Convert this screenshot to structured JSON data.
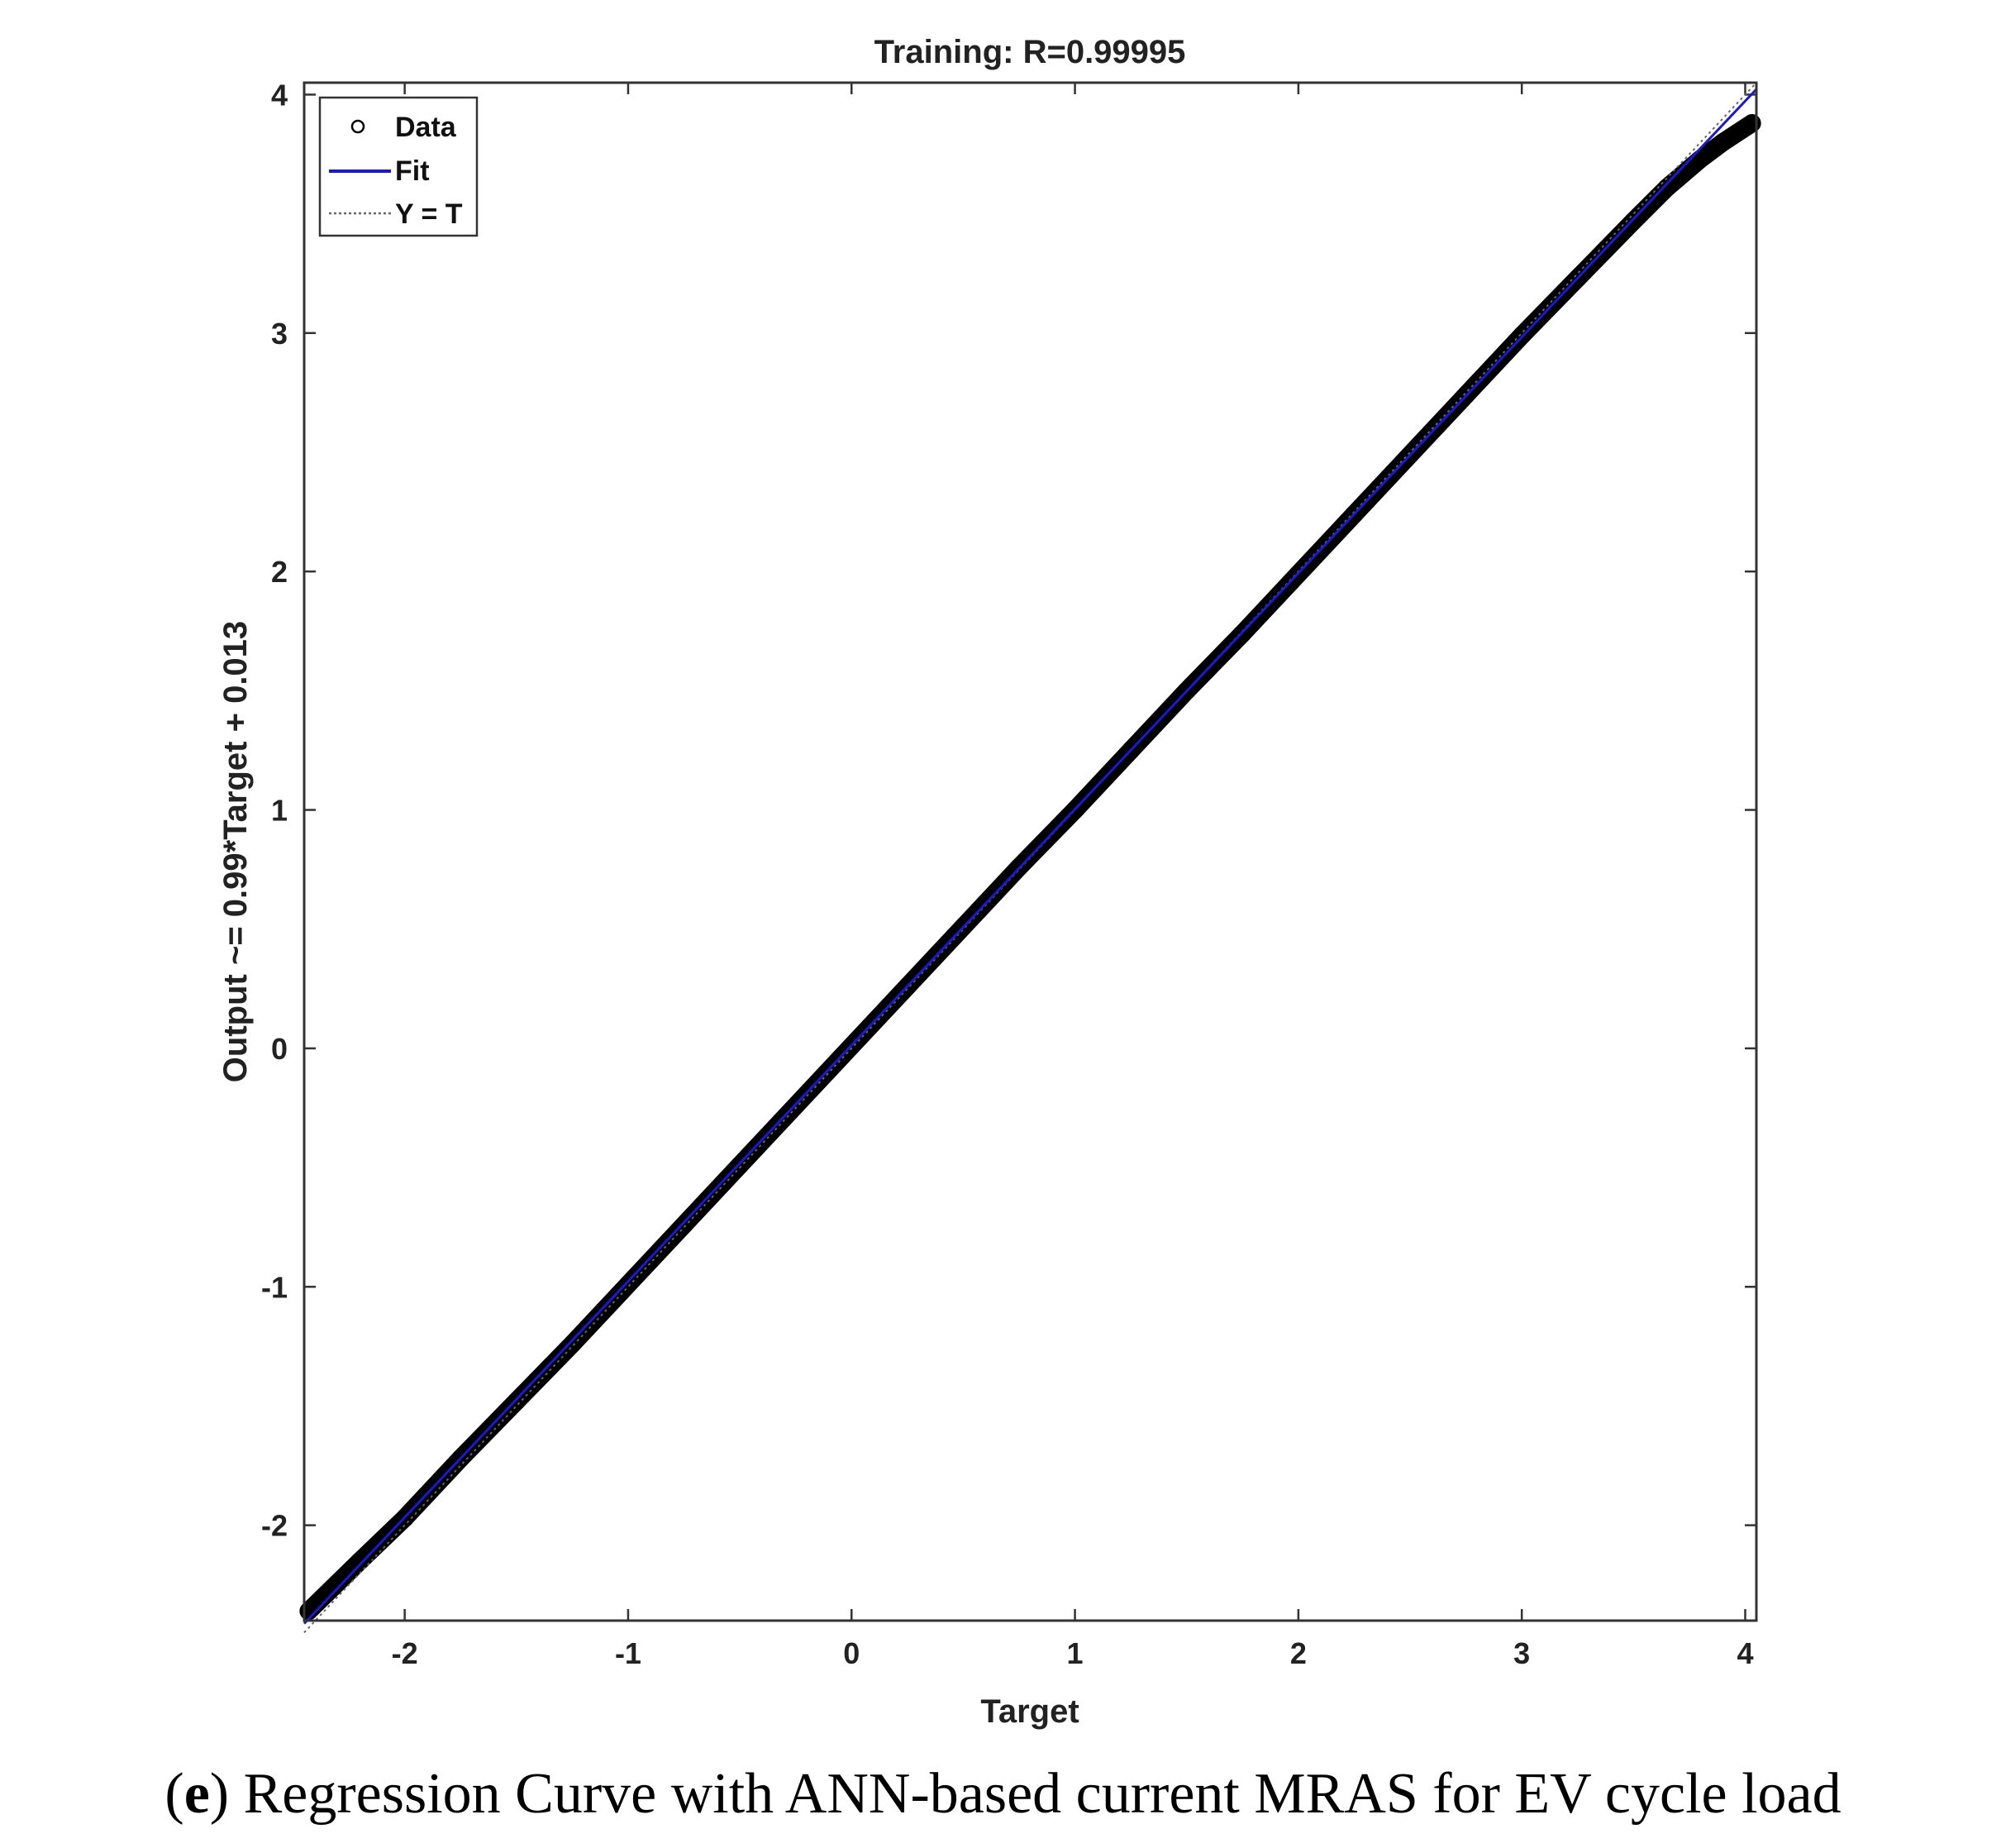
{
  "chart_data": {
    "type": "scatter",
    "title": "Training: R=0.99995",
    "xlabel": "Target",
    "ylabel": "Output ~= 0.99*Target + 0.013",
    "xlim": [
      -2.45,
      4.05
    ],
    "ylim": [
      -2.4,
      4.05
    ],
    "xticks": [
      -2,
      -1,
      0,
      1,
      2,
      3,
      4
    ],
    "yticks": [
      -2,
      -1,
      0,
      1,
      2,
      3,
      4
    ],
    "legend": {
      "placement": "top-left",
      "entries": [
        {
          "label": "Data",
          "style": "circle-marker",
          "color": "#000000"
        },
        {
          "label": "Fit",
          "style": "solid-line",
          "color": "#1a1acc"
        },
        {
          "label": "Y = T",
          "style": "dotted-line",
          "color": "#666666"
        }
      ]
    },
    "series": [
      {
        "name": "Data",
        "x": [
          -2.43,
          -2.2,
          -2.0,
          -1.75,
          -1.5,
          -1.25,
          -1.0,
          -0.75,
          -0.5,
          -0.25,
          0.0,
          0.25,
          0.5,
          0.75,
          1.0,
          1.25,
          1.5,
          1.75,
          2.0,
          2.25,
          2.5,
          2.75,
          3.0,
          3.25,
          3.5,
          3.65,
          3.8,
          3.9,
          4.03
        ],
        "y": [
          -2.36,
          -2.15,
          -1.97,
          -1.72,
          -1.48,
          -1.24,
          -0.99,
          -0.74,
          -0.49,
          -0.24,
          0.01,
          0.26,
          0.51,
          0.76,
          1.0,
          1.25,
          1.5,
          1.74,
          1.99,
          2.24,
          2.49,
          2.74,
          2.99,
          3.23,
          3.47,
          3.61,
          3.73,
          3.8,
          3.88
        ]
      },
      {
        "name": "Fit",
        "slope": 0.99,
        "intercept": 0.013,
        "x": [
          -2.45,
          4.05
        ]
      },
      {
        "name": "Y = T",
        "x": [
          -2.45,
          4.05
        ],
        "y": [
          -2.45,
          4.05
        ]
      }
    ]
  },
  "caption": {
    "label": "e",
    "text": "Regression Curve with ANN-based current MRAS for EV cycle load"
  }
}
